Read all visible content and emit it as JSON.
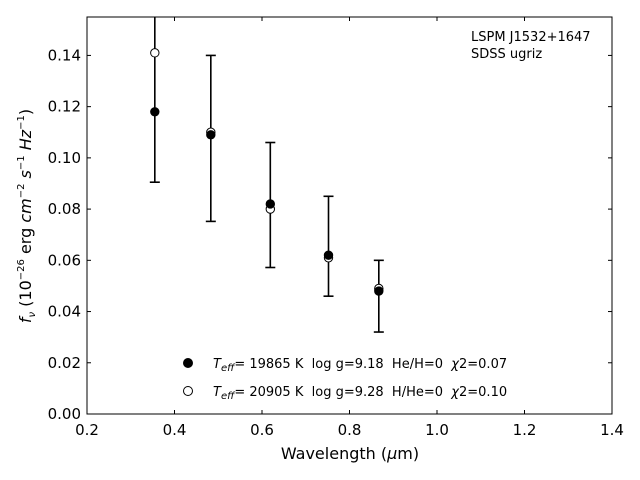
{
  "chart_data": {
    "type": "scatter",
    "annotation": [
      "LSPM J1532+1647",
      "SDSS ugriz"
    ],
    "xlabel": "Wavelength (μm)",
    "ylabel": "fν (10⁻²⁶ erg cm⁻² s⁻¹ Hz⁻¹)",
    "xlim": [
      0.2,
      1.4
    ],
    "ylim": [
      0.0,
      0.155
    ],
    "xticks": [
      0.2,
      0.4,
      0.6,
      0.8,
      1.0,
      1.2,
      1.4
    ],
    "yticks": [
      0.0,
      0.02,
      0.04,
      0.06,
      0.08,
      0.1,
      0.12,
      0.14
    ],
    "xtick_labels": [
      "0.2",
      "0.4",
      "0.6",
      "0.8",
      "1.0",
      "1.2",
      "1.4"
    ],
    "ytick_labels": [
      "0.00",
      "0.02",
      "0.04",
      "0.06",
      "0.08",
      "0.10",
      "0.12",
      "0.14"
    ],
    "grid": false,
    "legend_position": "lower-center",
    "observed": {
      "x": [
        0.355,
        0.483,
        0.619,
        0.752,
        0.867
      ],
      "y": [
        0.118,
        0.11,
        0.081,
        0.061,
        0.048
      ],
      "yerr_low": [
        0.0905,
        0.0752,
        0.0572,
        0.046,
        0.032
      ],
      "yerr_high": [
        0.16,
        0.14,
        0.106,
        0.085,
        0.06
      ]
    },
    "series": [
      {
        "marker": "filled",
        "label_T": "T",
        "label_sub": "eff",
        "label_rest": "= 19865 K  log g=9.18  He/H=0  ",
        "label_chi": "χ",
        "label_chi_val": "2=0.07",
        "x": [
          0.355,
          0.483,
          0.619,
          0.752,
          0.867
        ],
        "y": [
          0.118,
          0.109,
          0.082,
          0.062,
          0.048
        ]
      },
      {
        "marker": "open",
        "label_T": "T",
        "label_sub": "eff",
        "label_rest": "= 20905 K  log g=9.28  H/He=0  ",
        "label_chi": "χ",
        "label_chi_val": "2=0.10",
        "x": [
          0.355,
          0.483,
          0.619,
          0.752,
          0.867
        ],
        "y": [
          0.141,
          0.11,
          0.08,
          0.061,
          0.049
        ]
      }
    ]
  }
}
